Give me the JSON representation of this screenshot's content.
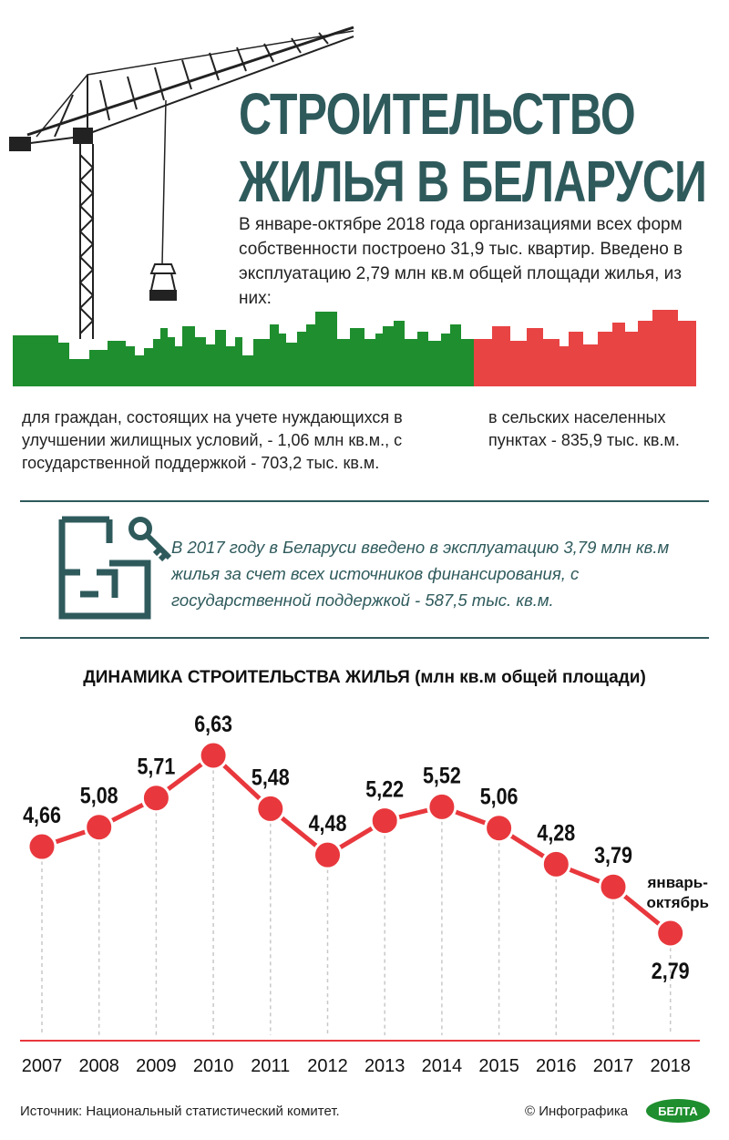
{
  "title": {
    "line1": "СТРОИТЕЛЬСТВО",
    "line2": "ЖИЛЬЯ В БЕЛАРУСИ"
  },
  "lead": "В январе-октябре 2018 года организациями всех форм собственности построено 31,9 тыс. квартир. Введено в эксплуатацию 2,79 млн кв.м общей площади жилья, из них:",
  "breakdown": {
    "left": {
      "text": "для граждан, состоящих на учете нуждающихся в улучшении жилищных условий, - 1,06 млн кв.м., с государственной поддержкой - 703,2 тыс. кв.м.",
      "color": "#1e8e2e"
    },
    "right": {
      "text": "в сельских населенных пунктах - 835,9 тыс. кв.м.",
      "color": "#e84444"
    }
  },
  "note": "В 2017 году в Беларуси введено в эксплуатацию 3,79 млн кв.м жилья за счет всех источников финансирования, с государственной поддержкой - 587,5 тыс. кв.м.",
  "icons": {
    "floorplan": "floor-plan-icon",
    "key": "key-icon",
    "crane": "tower-crane-illustration"
  },
  "colors": {
    "accent": "#2f5a5c",
    "point": "#e8383d",
    "line": "#e8383d",
    "green": "#1e8e2e",
    "red": "#e84444"
  },
  "chart_data": {
    "type": "line",
    "title": "ДИНАМИКА СТРОИТЕЛЬСТВА ЖИЛЬЯ",
    "title_unit": "(млн кв.м общей площади)",
    "categories": [
      "2007",
      "2008",
      "2009",
      "2010",
      "2011",
      "2012",
      "2013",
      "2014",
      "2015",
      "2016",
      "2017",
      "2018"
    ],
    "values": [
      4.66,
      5.08,
      5.71,
      6.63,
      5.48,
      4.48,
      5.22,
      5.52,
      5.06,
      4.28,
      3.79,
      2.79
    ],
    "labels": [
      "4,66",
      "5,08",
      "5,71",
      "6,63",
      "5,48",
      "4,48",
      "5,22",
      "5,52",
      "5,06",
      "4,28",
      "3,79",
      "2,79"
    ],
    "annotation": {
      "category": "2018",
      "text_line1": "январь-",
      "text_line2": "октябрь"
    },
    "grid": "vertical dashed",
    "legend": "none"
  },
  "source": "Источник: Национальный статистический комитет.",
  "credit": "© Инфографика",
  "logo_text": "БЕЛТА"
}
